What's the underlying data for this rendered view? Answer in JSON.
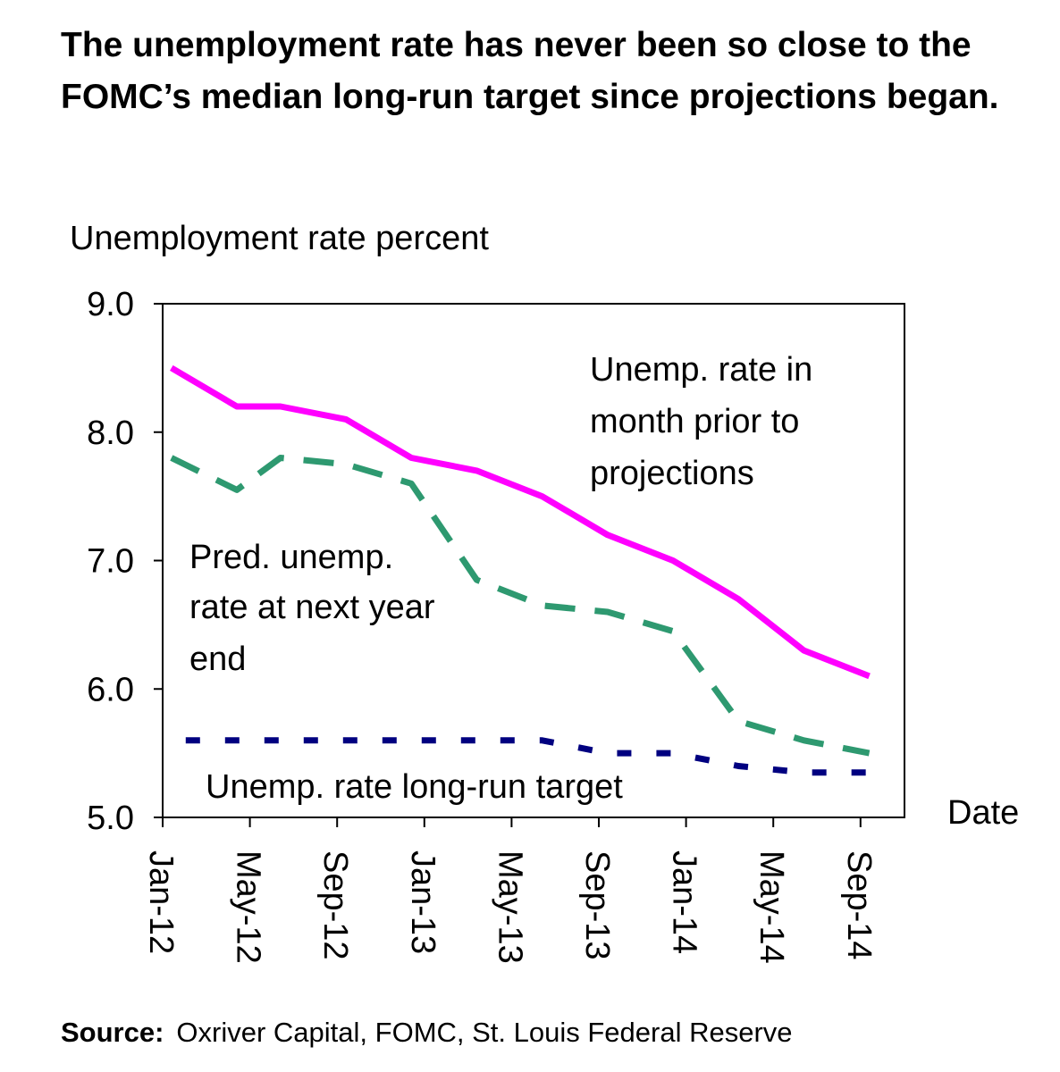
{
  "chart_data": {
    "type": "line",
    "title": "The unemployment rate has never been so close to the FOMC’s median long-run target since projections began.",
    "ylabel": "Unemployment rate percent",
    "xlabel": "Date",
    "ylim": [
      5.0,
      9.0
    ],
    "yticks": [
      "9.0",
      "8.0",
      "7.0",
      "6.0",
      "5.0"
    ],
    "xticks": [
      "Jan-12",
      "May-12",
      "Sep-12",
      "Jan-13",
      "May-13",
      "Sep-13",
      "Jan-14",
      "May-14",
      "Sep-14"
    ],
    "grid": false,
    "x": [
      "2012-01",
      "2012-04",
      "2012-06",
      "2012-09",
      "2012-12",
      "2013-03",
      "2013-06",
      "2013-09",
      "2013-12",
      "2014-03",
      "2014-06",
      "2014-09"
    ],
    "series": [
      {
        "name": "Unemp. rate in month prior to projections",
        "color": "#ff00ff",
        "style": "solid",
        "values": [
          8.5,
          8.2,
          8.2,
          8.1,
          7.8,
          7.7,
          7.5,
          7.2,
          7.0,
          6.7,
          6.3,
          6.1
        ]
      },
      {
        "name": "Pred. unemp. rate at next year end",
        "color": "#2e9970",
        "style": "dashed",
        "values": [
          7.8,
          7.55,
          7.8,
          7.75,
          7.6,
          6.85,
          6.65,
          6.6,
          6.45,
          5.75,
          5.6,
          5.5
        ]
      },
      {
        "name": "Unemp. rate long-run target",
        "color": "#000080",
        "style": "dotted",
        "values": [
          5.6,
          5.6,
          5.6,
          5.6,
          5.6,
          5.6,
          5.6,
          5.5,
          5.5,
          5.4,
          5.35,
          5.35
        ]
      }
    ],
    "annotations": {
      "magenta": [
        "Unemp. rate in",
        "month prior to",
        "projections"
      ],
      "green": [
        "Pred. unemp.",
        "rate at next year",
        "end"
      ],
      "blue": "Unemp. rate long-run target"
    },
    "source_label": "Source:",
    "source_text": "Oxriver Capital, FOMC, St. Louis Federal Reserve"
  }
}
